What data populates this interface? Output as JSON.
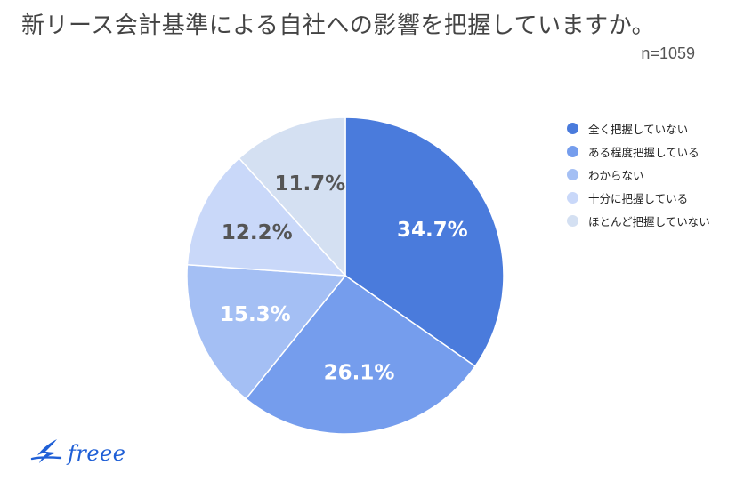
{
  "header": {
    "title": "新リース会計基準による自社への影響を把握していますか。",
    "sample_size": "n=1059"
  },
  "chart_data": {
    "type": "pie",
    "categories": [
      "全く把握していない",
      "ある程度把握している",
      "わからない",
      "十分に把握している",
      "ほとんど把握していない"
    ],
    "values": [
      34.7,
      26.1,
      15.3,
      12.2,
      11.7
    ],
    "value_labels": [
      "34.7%",
      "26.1%",
      "15.3%",
      "12.2%",
      "11.7%"
    ],
    "colors": [
      "#4a7bdc",
      "#759ded",
      "#a4bff4",
      "#c9d8f9",
      "#d4e0f2"
    ],
    "label_colors": [
      "#ffffff",
      "#ffffff",
      "#ffffff",
      "#555555",
      "#555555"
    ],
    "start": "12 o'clock, clockwise",
    "legend_position": "right"
  },
  "logo": {
    "text": "freee",
    "color": "#1f5fd6"
  }
}
